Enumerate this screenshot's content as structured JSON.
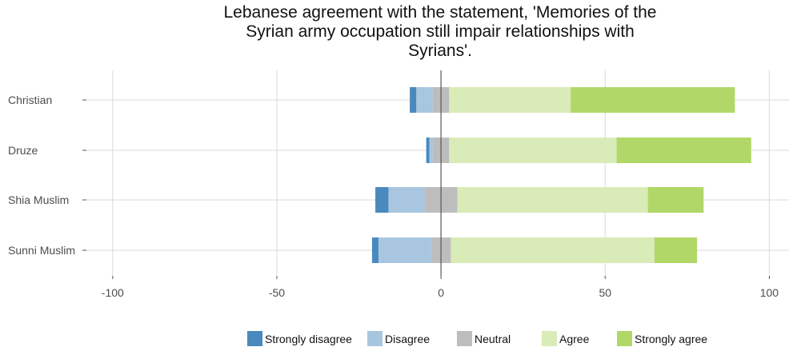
{
  "title_lines": [
    "Lebanese agreement with the statement, 'Memories of the",
    "Syrian army occupation still impair relationships with",
    "Syrians'."
  ],
  "colors": {
    "Strongly disagree": "#4a89be",
    "Disagree": "#a9c6e0",
    "Neutral": "#bdbdbd",
    "Agree": "#d9ebb7",
    "Strongly agree": "#b1d768",
    "grid": "#d9d9d9",
    "zero_line": "#555555"
  },
  "chart_data": {
    "type": "bar",
    "orientation": "horizontal",
    "stacked": "diverging",
    "title": "Lebanese agreement with the statement, 'Memories of the Syrian army occupation still impair relationships with Syrians'.",
    "categories": [
      "Christian",
      "Druze",
      "Shia Muslim",
      "Sunni Muslim"
    ],
    "x_ticks": [
      -100,
      -50,
      0,
      50,
      100
    ],
    "xlim": [
      -108,
      106
    ],
    "grid": true,
    "legend_position": "bottom",
    "series": [
      {
        "name": "Strongly disagree",
        "values": [
          2,
          1,
          4,
          2
        ]
      },
      {
        "name": "Disagree",
        "values": [
          5,
          1,
          11,
          16
        ]
      },
      {
        "name": "Neutral",
        "values": [
          5,
          5,
          10,
          6
        ]
      },
      {
        "name": "Agree",
        "values": [
          37,
          51,
          58,
          62
        ]
      },
      {
        "name": "Strongly agree",
        "values": [
          50,
          41,
          17,
          13
        ]
      }
    ]
  }
}
